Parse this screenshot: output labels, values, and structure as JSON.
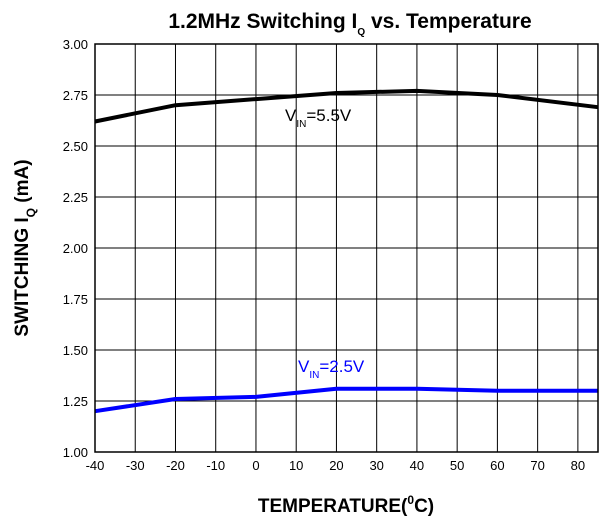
{
  "chart_data": {
    "type": "line",
    "title": {
      "main": "1.2MHz Switching I",
      "sub": "Q",
      "rest": " vs. Temperature"
    },
    "xlabel": {
      "main": "TEMPERATURE(",
      "sup": "0",
      "rest": "C)"
    },
    "ylabel": {
      "main": "SWITCHING I",
      "sub": "Q",
      "rest": " (mA)"
    },
    "xlim": [
      -40,
      85
    ],
    "ylim": [
      1.0,
      3.0
    ],
    "xticks": [
      -40,
      -30,
      -20,
      -10,
      0,
      10,
      20,
      30,
      40,
      50,
      60,
      70,
      80
    ],
    "yticks": [
      "1.00",
      "1.25",
      "1.50",
      "1.75",
      "2.00",
      "2.25",
      "2.50",
      "2.75",
      "3.00"
    ],
    "grid": true,
    "series": [
      {
        "name": {
          "main": "V",
          "sub": "IN",
          "rest": "=5.5V"
        },
        "color": "#000000",
        "x": [
          -40,
          -20,
          0,
          20,
          40,
          60,
          85
        ],
        "y": [
          2.62,
          2.7,
          2.73,
          2.76,
          2.77,
          2.75,
          2.69
        ]
      },
      {
        "name": {
          "main": "V",
          "sub": "IN",
          "rest": "=2.5V"
        },
        "color": "#0000ff",
        "x": [
          -40,
          -20,
          0,
          20,
          40,
          60,
          85
        ],
        "y": [
          1.2,
          1.26,
          1.27,
          1.31,
          1.31,
          1.3,
          1.3
        ]
      }
    ]
  }
}
